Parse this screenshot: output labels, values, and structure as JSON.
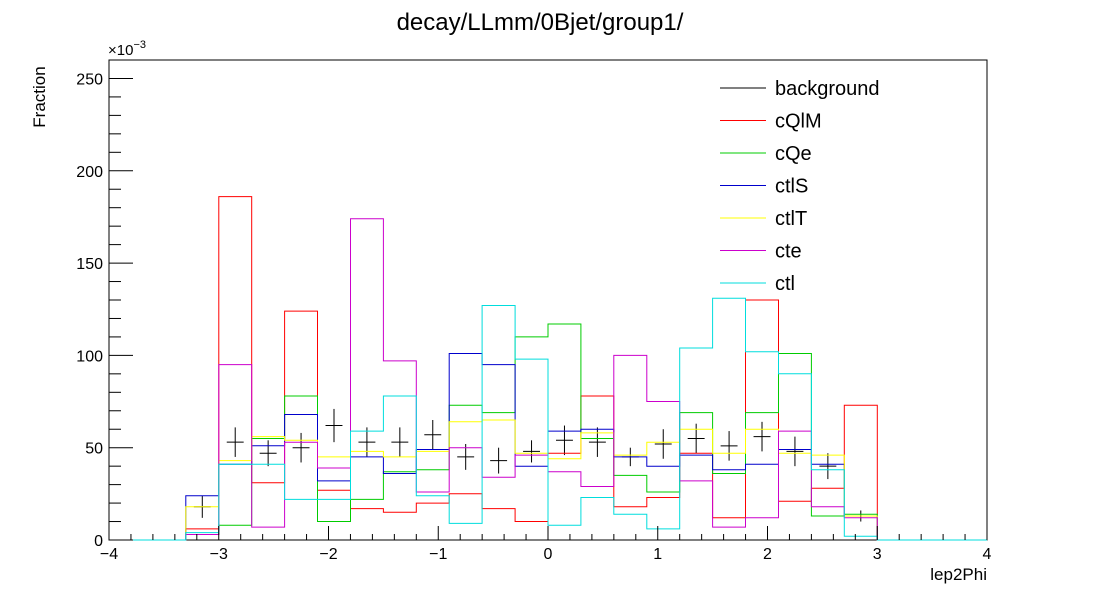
{
  "chart_data": {
    "type": "line",
    "title": "decay/LLmm/0Bjet/group1/",
    "xlabel": "lep2Phi",
    "ylabel": "Fraction",
    "exponent_label": "×10",
    "exponent_power": "−3",
    "xlim": [
      -4,
      4
    ],
    "ylim": [
      0,
      260
    ],
    "x_ticks": [
      -4,
      -3,
      -2,
      -1,
      0,
      1,
      2,
      3,
      4
    ],
    "x_tick_labels": [
      "−4",
      "−3",
      "−2",
      "−1",
      "0",
      "1",
      "2",
      "3",
      "4"
    ],
    "y_ticks": [
      0,
      50,
      100,
      150,
      200,
      250
    ],
    "y_tick_labels": [
      "0",
      "50",
      "100",
      "150",
      "200",
      "250"
    ],
    "legend_position": "top-right",
    "grid": false,
    "bin_edges": [
      -4.0,
      -3.6,
      -3.3,
      -3.0,
      -2.7,
      -2.4,
      -2.1,
      -1.8,
      -1.5,
      -1.2,
      -0.9,
      -0.6,
      -0.3,
      0.0,
      0.3,
      0.6,
      0.9,
      1.2,
      1.5,
      1.8,
      2.1,
      2.4,
      2.7,
      3.0,
      3.3,
      3.6,
      4.0
    ],
    "series": [
      {
        "name": "background",
        "color": "#000000",
        "errorbars": true,
        "values": [
          0,
          0,
          18,
          53,
          47,
          50,
          62,
          53,
          53,
          57,
          45,
          43,
          48,
          54,
          53,
          45,
          52,
          55,
          51,
          56,
          48,
          40,
          13,
          0,
          0,
          0
        ],
        "errors": [
          0,
          0,
          6,
          8,
          7,
          8,
          9,
          8,
          8,
          8,
          7,
          7,
          6,
          8,
          8,
          5,
          8,
          8,
          8,
          8,
          8,
          7,
          3,
          0,
          0,
          0
        ]
      },
      {
        "name": "cQlM",
        "color": "#ff0000",
        "values": [
          0,
          0,
          6,
          186,
          31,
          124,
          27,
          17,
          15,
          20,
          25,
          17,
          10,
          47,
          78,
          18,
          23,
          47,
          12,
          130,
          21,
          28,
          73,
          0,
          0,
          0
        ]
      },
      {
        "name": "cQe",
        "color": "#00cc00",
        "values": [
          0,
          0,
          3,
          8,
          55,
          78,
          10,
          22,
          37,
          38,
          73,
          69,
          110,
          117,
          55,
          35,
          26,
          69,
          36,
          69,
          101,
          13,
          14,
          0,
          0,
          0
        ]
      },
      {
        "name": "ctlS",
        "color": "#0000cc",
        "values": [
          0,
          0,
          24,
          41,
          51,
          68,
          32,
          45,
          36,
          49,
          101,
          95,
          40,
          59,
          60,
          45,
          40,
          46,
          38,
          41,
          49,
          41,
          13,
          0,
          0,
          0
        ]
      },
      {
        "name": "ctlT",
        "color": "#ffff00",
        "values": [
          0,
          0,
          18,
          43,
          56,
          54,
          45,
          48,
          45,
          48,
          64,
          65,
          47,
          44,
          58,
          46,
          53,
          60,
          47,
          60,
          47,
          46,
          13,
          0,
          0,
          0
        ]
      },
      {
        "name": "cte",
        "color": "#cc00cc",
        "values": [
          0,
          0,
          3,
          95,
          7,
          53,
          39,
          174,
          97,
          26,
          50,
          34,
          46,
          37,
          29,
          100,
          75,
          32,
          7,
          12,
          59,
          18,
          12,
          0,
          0,
          0
        ]
      },
      {
        "name": "ctl",
        "color": "#00dddd",
        "values": [
          0,
          0,
          4,
          41,
          41,
          22,
          22,
          59,
          78,
          24,
          9,
          127,
          98,
          8,
          23,
          14,
          6,
          104,
          131,
          102,
          90,
          38,
          2,
          0,
          0,
          0
        ]
      }
    ]
  }
}
